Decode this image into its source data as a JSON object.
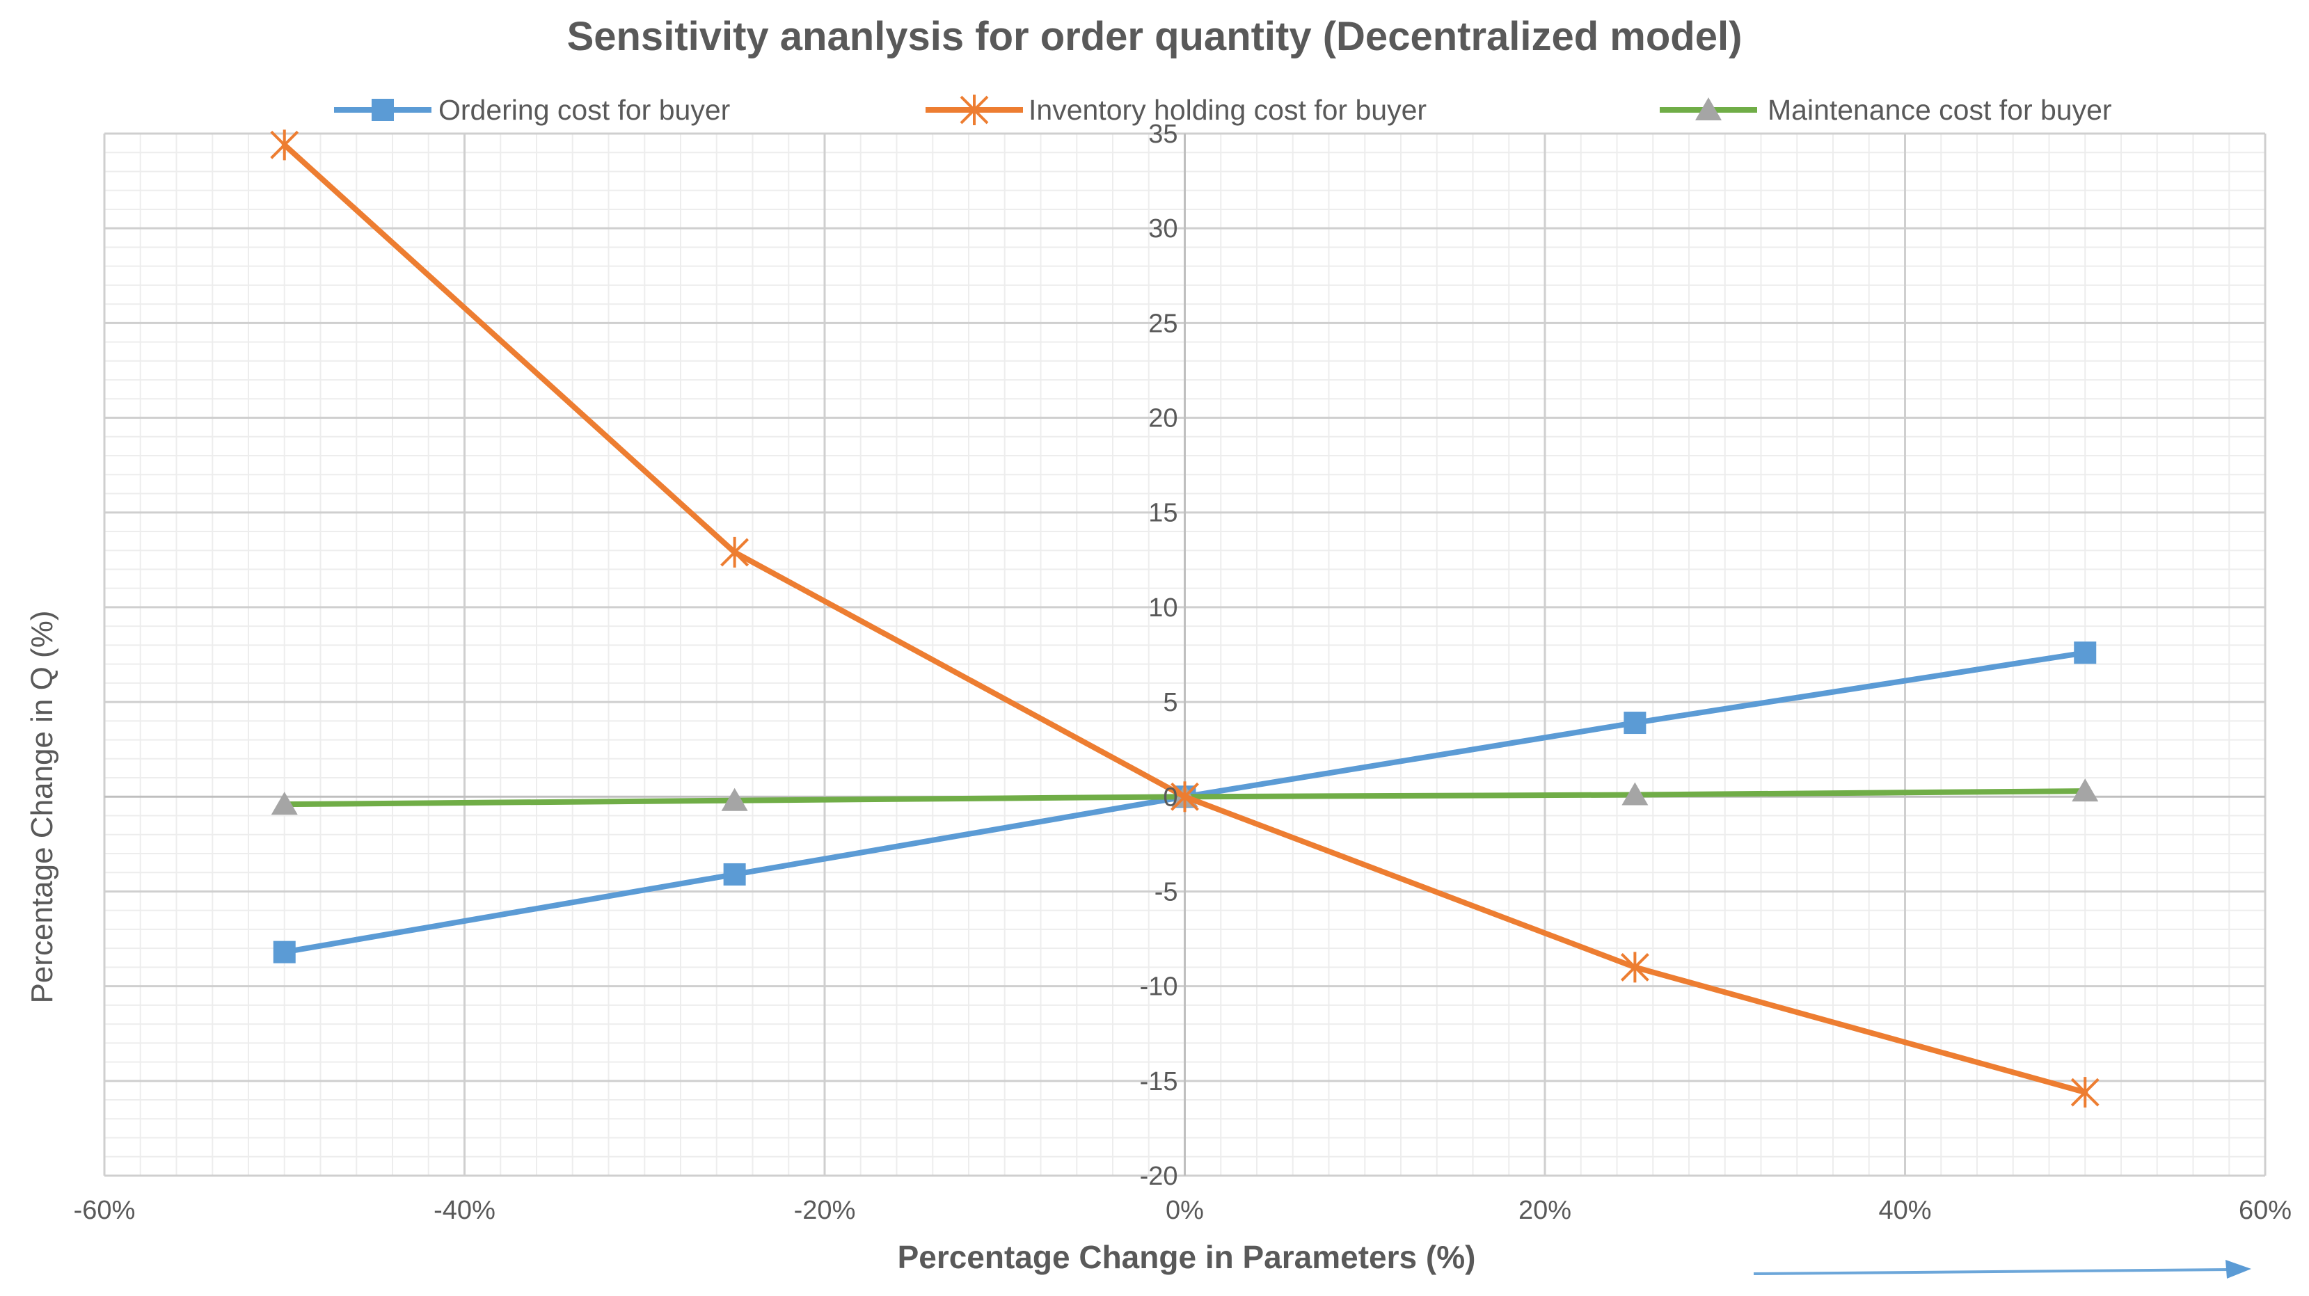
{
  "chart_data": {
    "type": "line",
    "title": "Sensitivity ananlysis for order quantity (Decentralized model)",
    "xlabel": "Percentage Change in Parameters (%)",
    "ylabel": "Percentage Change in Q (%)",
    "xlim": [
      -60,
      60
    ],
    "ylim": [
      -20,
      35
    ],
    "xticks": [
      -60,
      -40,
      -20,
      0,
      20,
      40,
      60
    ],
    "xtick_labels": [
      "-60%",
      "-40%",
      "-20%",
      "0%",
      "20%",
      "40%",
      "60%"
    ],
    "yticks": [
      -20,
      -15,
      -10,
      -5,
      0,
      5,
      10,
      15,
      20,
      25,
      30,
      35
    ],
    "ytick_labels": [
      "-20",
      "-15",
      "-10",
      "-5",
      "0",
      "5",
      "10",
      "15",
      "20",
      "25",
      "30",
      "35"
    ],
    "x": [
      -50,
      -25,
      0,
      25,
      50
    ],
    "legend_position": "top",
    "grid": true,
    "series": [
      {
        "name": "Ordering cost for buyer",
        "color": "#5B9BD5",
        "marker": "square",
        "values": [
          -8.2,
          -4.1,
          0,
          3.9,
          7.6
        ]
      },
      {
        "name": "Inventory holding cost for buyer",
        "color": "#ED7D31",
        "marker": "x",
        "values": [
          34.4,
          12.9,
          0,
          -9.0,
          -15.6
        ]
      },
      {
        "name": "Maintenance cost for buyer",
        "color": "#70AD47",
        "marker": "triangle",
        "marker_color": "#A5A5A5",
        "values": [
          -0.4,
          -0.2,
          0,
          0.1,
          0.3
        ]
      }
    ]
  }
}
